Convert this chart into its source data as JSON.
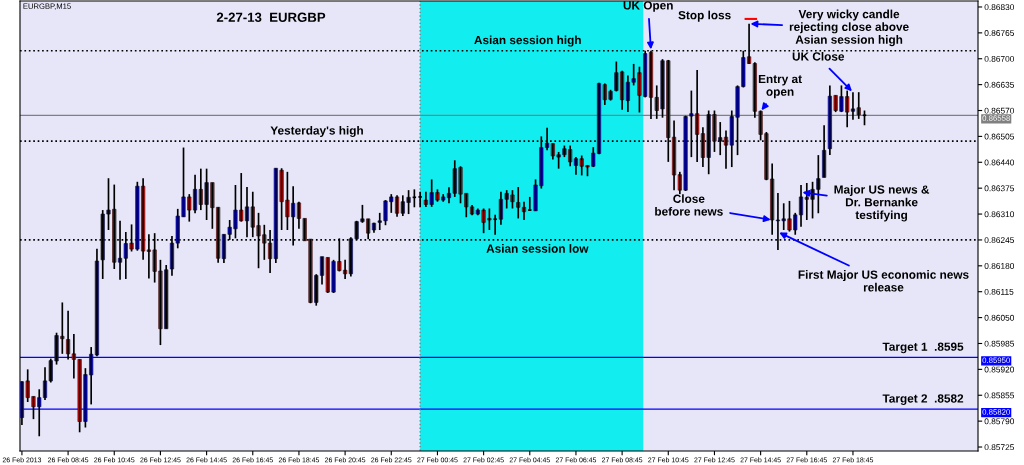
{
  "chart_data": {
    "type": "candlestick",
    "title": "2-27-13  EURGBP",
    "subtitle": "EURGBP,M15",
    "x": [
      "2013-02-26T06:45",
      "2013-02-26T07:00",
      "2013-02-26T07:15",
      "2013-02-26T07:30",
      "2013-02-26T07:45",
      "2013-02-26T08:00",
      "2013-02-26T08:15",
      "2013-02-26T08:30",
      "2013-02-26T08:45",
      "2013-02-26T09:00",
      "2013-02-26T09:15",
      "2013-02-26T09:30",
      "2013-02-26T09:45",
      "2013-02-26T10:00",
      "2013-02-26T10:15",
      "2013-02-26T10:30",
      "2013-02-26T10:45",
      "2013-02-26T11:00",
      "2013-02-26T11:15",
      "2013-02-26T11:30",
      "2013-02-26T11:45",
      "2013-02-26T12:00",
      "2013-02-26T12:15",
      "2013-02-26T12:30",
      "2013-02-26T12:45",
      "2013-02-26T13:00",
      "2013-02-26T13:15",
      "2013-02-26T13:30",
      "2013-02-26T13:45",
      "2013-02-26T14:00",
      "2013-02-26T14:15",
      "2013-02-26T14:30",
      "2013-02-26T14:45",
      "2013-02-26T15:00",
      "2013-02-26T15:15",
      "2013-02-26T15:30",
      "2013-02-26T15:45",
      "2013-02-26T16:00",
      "2013-02-26T16:15",
      "2013-02-26T16:30",
      "2013-02-26T16:45",
      "2013-02-26T17:00",
      "2013-02-26T17:15",
      "2013-02-26T17:30",
      "2013-02-26T17:45",
      "2013-02-26T18:00",
      "2013-02-26T18:15",
      "2013-02-26T18:30",
      "2013-02-26T18:45",
      "2013-02-26T19:00",
      "2013-02-26T19:15",
      "2013-02-26T19:30",
      "2013-02-26T19:45",
      "2013-02-26T20:00",
      "2013-02-26T20:15",
      "2013-02-26T20:30",
      "2013-02-26T20:45",
      "2013-02-26T21:00",
      "2013-02-26T21:15",
      "2013-02-26T21:30",
      "2013-02-26T21:45",
      "2013-02-26T22:00",
      "2013-02-26T22:15",
      "2013-02-26T22:30",
      "2013-02-26T22:45",
      "2013-02-26T23:00",
      "2013-02-26T23:15",
      "2013-02-26T23:30",
      "2013-02-26T23:45",
      "2013-02-27T00:00",
      "2013-02-27T00:15",
      "2013-02-27T00:30",
      "2013-02-27T00:45",
      "2013-02-27T01:00",
      "2013-02-27T01:15",
      "2013-02-27T01:30",
      "2013-02-27T01:45",
      "2013-02-27T02:00",
      "2013-02-27T02:15",
      "2013-02-27T02:30",
      "2013-02-27T02:45",
      "2013-02-27T03:00",
      "2013-02-27T03:15",
      "2013-02-27T03:30",
      "2013-02-27T03:45",
      "2013-02-27T04:00",
      "2013-02-27T04:15",
      "2013-02-27T04:30",
      "2013-02-27T04:45",
      "2013-02-27T05:00",
      "2013-02-27T05:15",
      "2013-02-27T05:30",
      "2013-02-27T05:45",
      "2013-02-27T06:00",
      "2013-02-27T06:15",
      "2013-02-27T06:30",
      "2013-02-27T06:45",
      "2013-02-27T07:00",
      "2013-02-27T07:15",
      "2013-02-27T07:30",
      "2013-02-27T07:45",
      "2013-02-27T08:00",
      "2013-02-27T08:15",
      "2013-02-27T08:30",
      "2013-02-27T08:45",
      "2013-02-27T09:00",
      "2013-02-27T09:15",
      "2013-02-27T09:30",
      "2013-02-27T09:45",
      "2013-02-27T10:00",
      "2013-02-27T10:15",
      "2013-02-27T10:30",
      "2013-02-27T10:45",
      "2013-02-27T11:00",
      "2013-02-27T11:15",
      "2013-02-27T11:30",
      "2013-02-27T11:45",
      "2013-02-27T12:00",
      "2013-02-27T12:15",
      "2013-02-27T12:30",
      "2013-02-27T12:45",
      "2013-02-27T13:00",
      "2013-02-27T13:15",
      "2013-02-27T13:30",
      "2013-02-27T13:45",
      "2013-02-27T14:00",
      "2013-02-27T14:15",
      "2013-02-27T14:30",
      "2013-02-27T14:45",
      "2013-02-27T15:00",
      "2013-02-27T15:15",
      "2013-02-27T15:30",
      "2013-02-27T15:45",
      "2013-02-27T16:00",
      "2013-02-27T16:15",
      "2013-02-27T16:30",
      "2013-02-27T16:45",
      "2013-02-27T17:00",
      "2013-02-27T17:15",
      "2013-02-27T17:30",
      "2013-02-27T17:45",
      "2013-02-27T18:00",
      "2013-02-27T18:15",
      "2013-02-27T18:30",
      "2013-02-27T18:45",
      "2013-02-27T19:00",
      "2013-02-27T19:15"
    ],
    "ohlc": [
      [
        0.85799,
        0.8589,
        0.8578,
        0.85889
      ],
      [
        0.85891,
        0.8592,
        0.85838,
        0.85849
      ],
      [
        0.85852,
        0.85852,
        0.85795,
        0.85826
      ],
      [
        0.85826,
        0.8587,
        0.85752,
        0.85849
      ],
      [
        0.85849,
        0.85925,
        0.85843,
        0.85891
      ],
      [
        0.85891,
        0.85947,
        0.85887,
        0.85942
      ],
      [
        0.85941,
        0.86012,
        0.85932,
        0.86005
      ],
      [
        0.86003,
        0.86088,
        0.85959,
        0.85997
      ],
      [
        0.85995,
        0.86067,
        0.85945,
        0.85959
      ],
      [
        0.85959,
        0.86009,
        0.85897,
        0.85945
      ],
      [
        0.85945,
        0.85945,
        0.85762,
        0.85789
      ],
      [
        0.85789,
        0.85923,
        0.85774,
        0.85907
      ],
      [
        0.85906,
        0.85976,
        0.85832,
        0.85958
      ],
      [
        0.85956,
        0.86223,
        0.85953,
        0.86192
      ],
      [
        0.86195,
        0.8632,
        0.86147,
        0.8631
      ],
      [
        0.8631,
        0.864,
        0.8627,
        0.8632
      ],
      [
        0.86322,
        0.86384,
        0.86172,
        0.86189
      ],
      [
        0.86189,
        0.86293,
        0.86145,
        0.86199
      ],
      [
        0.86199,
        0.86265,
        0.86147,
        0.86236
      ],
      [
        0.86237,
        0.86284,
        0.86216,
        0.86222
      ],
      [
        0.86222,
        0.86391,
        0.86218,
        0.8638
      ],
      [
        0.8638,
        0.864,
        0.86195,
        0.86217
      ],
      [
        0.8622,
        0.86259,
        0.86148,
        0.86216
      ],
      [
        0.8622,
        0.86262,
        0.86138,
        0.86166
      ],
      [
        0.86167,
        0.86195,
        0.85981,
        0.86022
      ],
      [
        0.86022,
        0.86182,
        0.86022,
        0.8617
      ],
      [
        0.86172,
        0.86255,
        0.86155,
        0.86237
      ],
      [
        0.86237,
        0.86323,
        0.86224,
        0.86305
      ],
      [
        0.86303,
        0.86477,
        0.86303,
        0.86353
      ],
      [
        0.86353,
        0.8636,
        0.86291,
        0.8632
      ],
      [
        0.8632,
        0.86409,
        0.86312,
        0.86372
      ],
      [
        0.86372,
        0.86424,
        0.8632,
        0.86334
      ],
      [
        0.86334,
        0.86424,
        0.86295,
        0.86389
      ],
      [
        0.86389,
        0.86389,
        0.86273,
        0.86326
      ],
      [
        0.86327,
        0.86327,
        0.86188,
        0.86199
      ],
      [
        0.86198,
        0.86259,
        0.86187,
        0.86259
      ],
      [
        0.86259,
        0.86295,
        0.86245,
        0.86277
      ],
      [
        0.86273,
        0.86383,
        0.86249,
        0.8632
      ],
      [
        0.8632,
        0.86413,
        0.86291,
        0.86293
      ],
      [
        0.86293,
        0.86378,
        0.86252,
        0.86328
      ],
      [
        0.86328,
        0.86366,
        0.86252,
        0.86277
      ],
      [
        0.86281,
        0.86313,
        0.86174,
        0.86255
      ],
      [
        0.86258,
        0.86283,
        0.86195,
        0.86237
      ],
      [
        0.86237,
        0.8627,
        0.86162,
        0.86198
      ],
      [
        0.86198,
        0.86425,
        0.86187,
        0.86425
      ],
      [
        0.8642,
        0.86425,
        0.8627,
        0.86341
      ],
      [
        0.86345,
        0.86416,
        0.8627,
        0.86303
      ],
      [
        0.86303,
        0.8638,
        0.86231,
        0.86337
      ],
      [
        0.86338,
        0.86341,
        0.86273,
        0.86299
      ],
      [
        0.86299,
        0.86299,
        0.86243,
        0.86243
      ],
      [
        0.86247,
        0.86247,
        0.86086,
        0.86088
      ],
      [
        0.86088,
        0.86159,
        0.8608,
        0.86156
      ],
      [
        0.86156,
        0.86203,
        0.86133,
        0.86203
      ],
      [
        0.86201,
        0.86201,
        0.86112,
        0.86114
      ],
      [
        0.86114,
        0.86195,
        0.86112,
        0.86191
      ],
      [
        0.86191,
        0.86249,
        0.86166,
        0.86168
      ],
      [
        0.86169,
        0.86195,
        0.86147,
        0.8616
      ],
      [
        0.8616,
        0.86252,
        0.86153,
        0.86248
      ],
      [
        0.86248,
        0.86293,
        0.86245,
        0.86291
      ],
      [
        0.86291,
        0.86333,
        0.86288,
        0.86298
      ],
      [
        0.86298,
        0.86298,
        0.86247,
        0.86262
      ],
      [
        0.8627,
        0.86288,
        0.86263,
        0.86287
      ],
      [
        0.86289,
        0.86313,
        0.8627,
        0.86293
      ],
      [
        0.86293,
        0.86345,
        0.86282,
        0.86343
      ],
      [
        0.86341,
        0.8636,
        0.86313,
        0.86353
      ],
      [
        0.86353,
        0.86357,
        0.86303,
        0.86312
      ],
      [
        0.86312,
        0.86357,
        0.86305,
        0.86341
      ],
      [
        0.86339,
        0.8637,
        0.8631,
        0.86352
      ],
      [
        0.86352,
        0.86372,
        0.86327,
        0.86352
      ],
      [
        0.86353,
        0.86366,
        0.86328,
        0.86353
      ],
      [
        0.86345,
        0.86366,
        0.86328,
        0.86334
      ],
      [
        0.86334,
        0.86397,
        0.86328,
        0.86364
      ],
      [
        0.86364,
        0.86372,
        0.86341,
        0.86345
      ],
      [
        0.86345,
        0.8636,
        0.86341,
        0.86353
      ],
      [
        0.86351,
        0.86377,
        0.86337,
        0.86362
      ],
      [
        0.86362,
        0.86445,
        0.86353,
        0.86424
      ],
      [
        0.86427,
        0.8643,
        0.86337,
        0.8636
      ],
      [
        0.86362,
        0.86362,
        0.86302,
        0.86328
      ],
      [
        0.86328,
        0.86333,
        0.86307,
        0.8631
      ],
      [
        0.8631,
        0.86324,
        0.86307,
        0.8632
      ],
      [
        0.8632,
        0.86324,
        0.86262,
        0.86289
      ],
      [
        0.86299,
        0.86324,
        0.8627,
        0.86295
      ],
      [
        0.86297,
        0.86308,
        0.86258,
        0.86297
      ],
      [
        0.86297,
        0.86366,
        0.86283,
        0.86347
      ],
      [
        0.86347,
        0.8637,
        0.86324,
        0.86362
      ],
      [
        0.86358,
        0.8637,
        0.86324,
        0.86341
      ],
      [
        0.86339,
        0.86378,
        0.86299,
        0.86327
      ],
      [
        0.86327,
        0.86341,
        0.86295,
        0.86316
      ],
      [
        0.8632,
        0.86353,
        0.86318,
        0.8632
      ],
      [
        0.86318,
        0.86397,
        0.86318,
        0.86383
      ],
      [
        0.86381,
        0.86505,
        0.86374,
        0.86477
      ],
      [
        0.86477,
        0.86527,
        0.8647,
        0.86488
      ],
      [
        0.86487,
        0.86488,
        0.86447,
        0.86456
      ],
      [
        0.86453,
        0.86466,
        0.86424,
        0.86459
      ],
      [
        0.86459,
        0.86482,
        0.86453,
        0.86474
      ],
      [
        0.86472,
        0.86482,
        0.8643,
        0.86441
      ],
      [
        0.86432,
        0.86453,
        0.86409,
        0.86449
      ],
      [
        0.86449,
        0.86457,
        0.86407,
        0.8643
      ],
      [
        0.86432,
        0.86432,
        0.86405,
        0.86428
      ],
      [
        0.8643,
        0.86478,
        0.86428,
        0.86463
      ],
      [
        0.86462,
        0.8664,
        0.8646,
        0.86638
      ],
      [
        0.86635,
        0.86638,
        0.86584,
        0.86597
      ],
      [
        0.86598,
        0.86622,
        0.86595,
        0.86618
      ],
      [
        0.8662,
        0.86693,
        0.86618,
        0.86665
      ],
      [
        0.86667,
        0.8667,
        0.86572,
        0.86597
      ],
      [
        0.86595,
        0.86658,
        0.86566,
        0.86641
      ],
      [
        0.86641,
        0.86687,
        0.86633,
        0.8665
      ],
      [
        0.86665,
        0.8668,
        0.86565,
        0.86608
      ],
      [
        0.86605,
        0.8672,
        0.86603,
        0.86713
      ],
      [
        0.86716,
        0.8672,
        0.86549,
        0.86603
      ],
      [
        0.86603,
        0.86633,
        0.86549,
        0.8657
      ],
      [
        0.86574,
        0.86699,
        0.86552,
        0.86695
      ],
      [
        0.86695,
        0.86697,
        0.86441,
        0.86502
      ],
      [
        0.86503,
        0.86545,
        0.8637,
        0.86408
      ],
      [
        0.86409,
        0.86416,
        0.8636,
        0.8637
      ],
      [
        0.8637,
        0.86557,
        0.86368,
        0.86555
      ],
      [
        0.86556,
        0.8662,
        0.86453,
        0.86562
      ],
      [
        0.86562,
        0.86672,
        0.86441,
        0.8651
      ],
      [
        0.86512,
        0.86528,
        0.86428,
        0.86452
      ],
      [
        0.86452,
        0.8657,
        0.8641,
        0.8656
      ],
      [
        0.8656,
        0.8657,
        0.86466,
        0.86493
      ],
      [
        0.86493,
        0.86541,
        0.86458,
        0.86502
      ],
      [
        0.86503,
        0.8652,
        0.86424,
        0.86483
      ],
      [
        0.86483,
        0.8657,
        0.86428,
        0.86555
      ],
      [
        0.86553,
        0.86633,
        0.86458,
        0.8663
      ],
      [
        0.8663,
        0.8672,
        0.86628,
        0.86703
      ],
      [
        0.86705,
        0.86788,
        0.86687,
        0.86688
      ],
      [
        0.86688,
        0.86691,
        0.86552,
        0.86568
      ],
      [
        0.86568,
        0.8657,
        0.86495,
        0.8651
      ],
      [
        0.86512,
        0.86516,
        0.86395,
        0.86397
      ],
      [
        0.86398,
        0.86437,
        0.86258,
        0.86295
      ],
      [
        0.86293,
        0.86363,
        0.8622,
        0.86295
      ],
      [
        0.86293,
        0.86337,
        0.8627,
        0.86298
      ],
      [
        0.86298,
        0.86343,
        0.86266,
        0.8627
      ],
      [
        0.8627,
        0.86313,
        0.86258,
        0.86308
      ],
      [
        0.86308,
        0.86383,
        0.86278,
        0.86353
      ],
      [
        0.86352,
        0.86388,
        0.86295,
        0.86347
      ],
      [
        0.86347,
        0.86391,
        0.86299,
        0.86372
      ],
      [
        0.86372,
        0.86458,
        0.86312,
        0.86399
      ],
      [
        0.86402,
        0.86533,
        0.86402,
        0.8647
      ],
      [
        0.86474,
        0.86633,
        0.86458,
        0.86606
      ],
      [
        0.86608,
        0.86608,
        0.86566,
        0.8657
      ],
      [
        0.86568,
        0.86633,
        0.86566,
        0.86605
      ],
      [
        0.86605,
        0.8662,
        0.86528,
        0.86566
      ],
      [
        0.86568,
        0.86616,
        0.86547,
        0.86574
      ],
      [
        0.86577,
        0.86616,
        0.86549,
        0.86559
      ],
      [
        0.86558,
        0.8657,
        0.86533,
        0.86558
      ]
    ],
    "colors": [
      "#0000ff",
      "#ff0000",
      "#ff0000",
      "#0000ff",
      "#0000ff",
      "#0000ff",
      "#0000ff",
      "#ff0000",
      "#ff0000",
      "#ff0000",
      "#ff0000",
      "#0000ff",
      "#0000ff",
      "#0000ff",
      "#0000ff",
      "#0000ff",
      "#ff0000",
      "#0000ff",
      "#0000ff",
      "#ff0000",
      "#0000ff",
      "#ff0000",
      "#ff0000",
      "#ff0000",
      "#ff0000",
      "#0000ff",
      "#0000ff",
      "#0000ff",
      "#0000ff",
      "#ff0000",
      "#0000ff",
      "#ff0000",
      "#0000ff",
      "#ff0000",
      "#ff0000",
      "#0000ff",
      "#0000ff",
      "#0000ff",
      "#ff0000",
      "#0000ff",
      "#ff0000",
      "#ff0000",
      "#ff0000",
      "#ff0000",
      "#0000ff",
      "#ff0000",
      "#ff0000",
      "#0000ff",
      "#ff0000",
      "#ff0000",
      "#ff0000",
      "#0000ff",
      "#0000ff",
      "#ff0000",
      "#0000ff",
      "#ff0000",
      "#ff0000",
      "#0000ff",
      "#0000ff",
      "#0000ff",
      "#ff0000",
      "#0000ff",
      "#0000ff",
      "#0000ff",
      "#0000ff",
      "#ff0000",
      "#0000ff",
      "#0000ff",
      "#000000",
      "#000000",
      "#ff0000",
      "#0000ff",
      "#ff0000",
      "#0000ff",
      "#0000ff",
      "#0000ff",
      "#ff0000",
      "#ff0000",
      "#ff0000",
      "#0000ff",
      "#ff0000",
      "#ff0000",
      "#000000",
      "#0000ff",
      "#0000ff",
      "#ff0000",
      "#ff0000",
      "#ff0000",
      "#000000",
      "#0000ff",
      "#0000ff",
      "#0000ff",
      "#ff0000",
      "#0000ff",
      "#0000ff",
      "#ff0000",
      "#0000ff",
      "#ff0000",
      "#ff0000",
      "#0000ff",
      "#0000ff",
      "#ff0000",
      "#0000ff",
      "#0000ff",
      "#ff0000",
      "#0000ff",
      "#0000ff",
      "#ff0000",
      "#0000ff",
      "#ff0000",
      "#ff0000",
      "#0000ff",
      "#ff0000",
      "#ff0000",
      "#ff0000",
      "#0000ff",
      "#0000ff",
      "#ff0000",
      "#ff0000",
      "#0000ff",
      "#ff0000",
      "#0000ff",
      "#ff0000",
      "#0000ff",
      "#0000ff",
      "#0000ff",
      "#ff0000",
      "#ff0000",
      "#ff0000",
      "#ff0000",
      "#ff0000",
      "#0000ff",
      "#0000ff",
      "#ff0000",
      "#0000ff",
      "#0000ff",
      "#ff0000",
      "#0000ff",
      "#0000ff",
      "#0000ff",
      "#0000ff",
      "#ff0000",
      "#0000ff",
      "#ff0000",
      "#0000ff",
      "#ff0000",
      "#000000"
    ],
    "xlim": [
      "2013-02-26T06:40",
      "2013-02-28T00:10"
    ],
    "xticks": [
      {
        "value": "2013-02-26T06:45",
        "label": "26 Feb 2013"
      },
      {
        "value": "2013-02-26T08:45",
        "label": "26 Feb 08:45"
      },
      {
        "value": "2013-02-26T10:45",
        "label": "26 Feb 10:45"
      },
      {
        "value": "2013-02-26T12:45",
        "label": "26 Feb 12:45"
      },
      {
        "value": "2013-02-26T14:45",
        "label": "26 Feb 14:45"
      },
      {
        "value": "2013-02-26T16:45",
        "label": "26 Feb 16:45"
      },
      {
        "value": "2013-02-26T18:45",
        "label": "26 Feb 18:45"
      },
      {
        "value": "2013-02-26T20:45",
        "label": "26 Feb 20:45"
      },
      {
        "value": "2013-02-26T22:45",
        "label": "26 Feb 22:45"
      },
      {
        "value": "2013-02-27T00:45",
        "label": "27 Feb 00:45"
      },
      {
        "value": "2013-02-27T02:45",
        "label": "27 Feb 02:45"
      },
      {
        "value": "2013-02-27T04:45",
        "label": "27 Feb 04:45"
      },
      {
        "value": "2013-02-27T06:45",
        "label": "27 Feb 06:45"
      },
      {
        "value": "2013-02-27T08:45",
        "label": "27 Feb 08:45"
      },
      {
        "value": "2013-02-27T10:45",
        "label": "27 Feb 10:45"
      },
      {
        "value": "2013-02-27T12:45",
        "label": "27 Feb 12:45"
      },
      {
        "value": "2013-02-27T14:45",
        "label": "27 Feb 14:45"
      },
      {
        "value": "2013-02-27T16:45",
        "label": "27 Feb 16:45"
      },
      {
        "value": "2013-02-27T18:45",
        "label": "27 Feb 18:45"
      }
    ],
    "ylim": [
      0.85715,
      0.86845
    ],
    "yticks": [
      {
        "value": 0.8683,
        "label": "0.86830"
      },
      {
        "value": 0.86765,
        "label": "0.86765"
      },
      {
        "value": 0.867,
        "label": "0.86700"
      },
      {
        "value": 0.86635,
        "label": "0.86635"
      },
      {
        "value": 0.8657,
        "label": "0.86570"
      },
      {
        "value": 0.86505,
        "label": "0.86505"
      },
      {
        "value": 0.8644,
        "label": "0.86440"
      },
      {
        "value": 0.86375,
        "label": "0.86375"
      },
      {
        "value": 0.8631,
        "label": "0.86310"
      },
      {
        "value": 0.86245,
        "label": "0.86245"
      },
      {
        "value": 0.8618,
        "label": "0.86180"
      },
      {
        "value": 0.86115,
        "label": "0.86115"
      },
      {
        "value": 0.8605,
        "label": "0.86050"
      },
      {
        "value": 0.85985,
        "label": "0.85985"
      },
      {
        "value": 0.8592,
        "label": "0.85920"
      },
      {
        "value": 0.85855,
        "label": "0.85855"
      },
      {
        "value": 0.8579,
        "label": "0.85790"
      },
      {
        "value": 0.85725,
        "label": "0.85725"
      }
    ],
    "bands": [
      {
        "axis": "x",
        "from": "2013-02-26T06:40",
        "to": "2013-02-27T00:00",
        "color": "#e6e6f8"
      },
      {
        "axis": "x",
        "from": "2013-02-27T00:00",
        "to": "2013-02-28T00:10",
        "color": "#e6e6f8"
      },
      {
        "axis": "x",
        "from": "2013-02-27T00:00",
        "to": "2013-02-27T09:40",
        "color": "#12eef0"
      }
    ],
    "ref_lines": [
      {
        "axis": "y",
        "value": 0.8672,
        "label": "Asian session high",
        "color": "#000000",
        "line_style": "dotted"
      },
      {
        "axis": "y",
        "value": 0.86493,
        "label": "Yesterday's high",
        "color": "#000000",
        "line_style": "dotted"
      },
      {
        "axis": "y",
        "value": 0.86245,
        "label": "Asian session low",
        "color": "#000000",
        "line_style": "dotted"
      },
      {
        "axis": "y",
        "value": 0.86558,
        "color": "#808080",
        "line_style": "solid"
      },
      {
        "axis": "y",
        "value": 0.8595,
        "label": "Target 1  .8595",
        "color": "#0000ff",
        "line_style": "solid"
      },
      {
        "axis": "y",
        "value": 0.8582,
        "label": "Target 2  .8582",
        "color": "#0000ff",
        "line_style": "solid"
      },
      {
        "axis": "x",
        "value": "2013-02-27T00:00",
        "color": "#808080",
        "line_style": "dotted"
      }
    ],
    "annotations": [
      {
        "text": "UK Open",
        "x": "2013-02-27T10:00",
        "y": 0.8672
      },
      {
        "text": "Stop loss",
        "x": "2013-02-27T14:15",
        "y": 0.868
      },
      {
        "text": "Very wicky candle\nrejecting close above\nAsian session high",
        "x": "2013-02-27T14:15",
        "y": 0.86788
      },
      {
        "text": "Entry at\nopen",
        "x": "2013-02-27T14:45",
        "y": 0.86568
      },
      {
        "text": "UK Close",
        "x": "2013-02-27T18:45",
        "y": 0.86616
      },
      {
        "text": "Close\nbefore news",
        "x": "2013-02-27T15:15",
        "y": 0.86295
      },
      {
        "text": "First Major US economic news\nrelease",
        "x": "2013-02-27T15:30",
        "y": 0.86265
      },
      {
        "text": "Major US news &\nDr. Bernanke\ntestifying",
        "x": "2013-02-27T16:30",
        "y": 0.86365
      },
      {
        "text": "0.86558",
        "x": "2013-02-28T00:10",
        "y": 0.86558
      },
      {
        "text": "0.85950",
        "x": "2013-02-28T00:10",
        "y": 0.8595
      },
      {
        "text": "0.85820",
        "x": "2013-02-28T00:10",
        "y": 0.8582
      }
    ]
  }
}
